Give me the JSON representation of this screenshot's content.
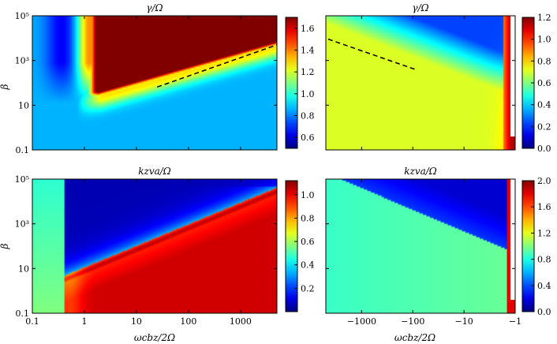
{
  "figure": {
    "xlabel_left": "ωcbz/2Ω",
    "xlabel_right": "ωcbz/2Ω",
    "ylabel": "β"
  },
  "colormap": "jet",
  "chart_data": [
    {
      "type": "heatmap",
      "title": "γ/Ω",
      "xscale": "log",
      "xlim": [
        0.1,
        5000
      ],
      "xticks": [
        "0.1",
        "1",
        "10",
        "100",
        "1000"
      ],
      "yscale": "log",
      "ylim": [
        0.1,
        100000
      ],
      "yticks": [
        "0.1",
        "10",
        "10³",
        "10⁵"
      ],
      "colorbar": {
        "range": [
          0.5,
          1.7
        ],
        "ticks": [
          "0.6",
          "0.8",
          "1.0",
          "1.2",
          "1.4",
          "1.6"
        ]
      },
      "dashed_line": {
        "from": [
          25,
          65
        ],
        "to": [
          5000,
          5000
        ]
      }
    },
    {
      "type": "heatmap",
      "title": "γ/Ω",
      "xscale": "log",
      "xlim": [
        -5000,
        -1
      ],
      "xticks": [
        "−1000",
        "−100",
        "−10",
        "−1"
      ],
      "yscale": "log",
      "ylim": [
        0.1,
        100000
      ],
      "colorbar": {
        "range": [
          0,
          1.2
        ],
        "ticks": [
          "0.0",
          "0.2",
          "0.4",
          "0.6",
          "0.8",
          "1.0",
          "1.2"
        ]
      },
      "dashed_line": {
        "from": [
          -4500,
          9000
        ],
        "to": [
          -90,
          400
        ]
      }
    },
    {
      "type": "heatmap",
      "title": "kzva/Ω",
      "xscale": "log",
      "xlim": [
        0.1,
        5000
      ],
      "xticks": [
        "0.1",
        "1",
        "10",
        "100",
        "1000"
      ],
      "yscale": "log",
      "ylim": [
        0.1,
        100000
      ],
      "yticks": [
        "0.1",
        "10",
        "10³",
        "10⁵"
      ],
      "colorbar": {
        "range": [
          0,
          1.12
        ],
        "ticks": [
          "0.2",
          "0.4",
          "0.6",
          "0.8",
          "1.0"
        ]
      }
    },
    {
      "type": "heatmap",
      "title": "kzva/Ω",
      "xscale": "log",
      "xlim": [
        -5000,
        -1
      ],
      "xticks": [
        "−1000",
        "−100",
        "−10",
        "−1"
      ],
      "yscale": "log",
      "ylim": [
        0.1,
        100000
      ],
      "colorbar": {
        "range": [
          0,
          2.0
        ],
        "ticks": [
          "0.0",
          "0.4",
          "0.8",
          "1.2",
          "1.6",
          "2.0"
        ]
      }
    }
  ]
}
